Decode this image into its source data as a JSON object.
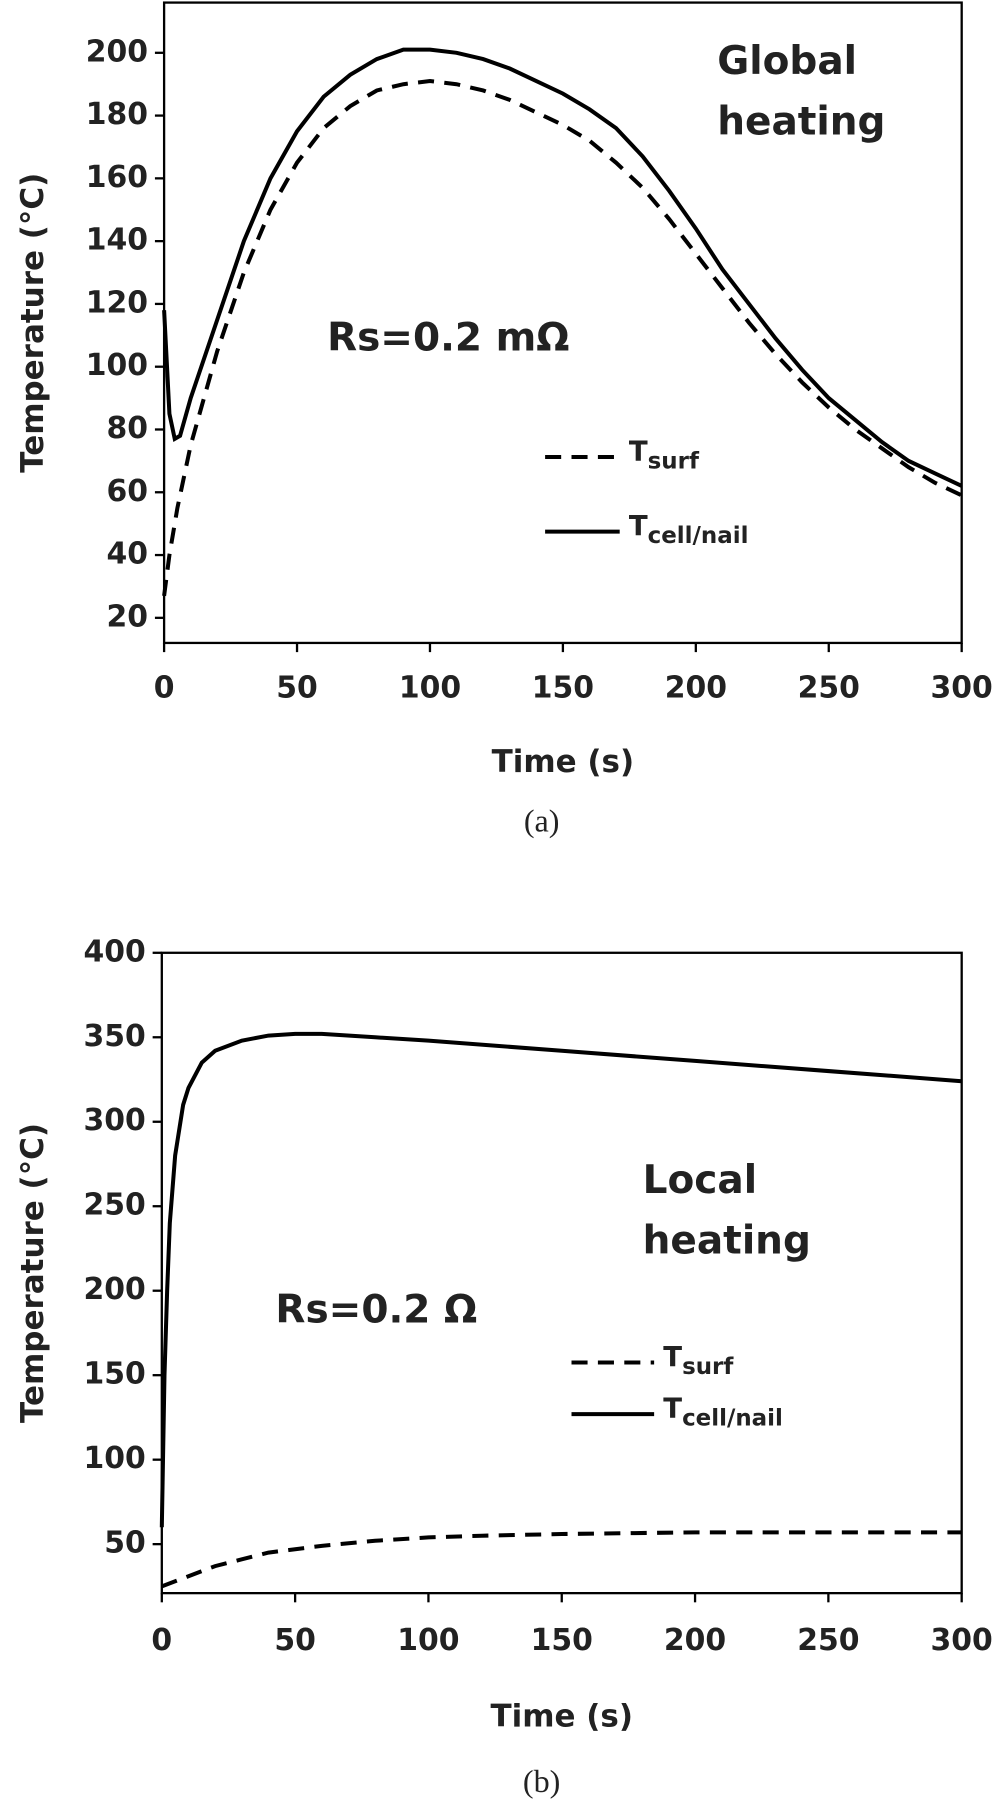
{
  "chart_data": [
    {
      "type": "line",
      "xlabel": "Time (s)",
      "ylabel": "Temperature (°C)",
      "caption": "(a)",
      "annotations": [
        [
          "Global",
          "heating"
        ],
        [
          "Rs=0.2 mΩ"
        ]
      ],
      "xlim": [
        0,
        300
      ],
      "xticks": [
        0,
        50,
        100,
        150,
        200,
        250,
        300
      ],
      "ylim": [
        12,
        216
      ],
      "yticks": [
        20,
        40,
        60,
        80,
        100,
        120,
        140,
        160,
        180,
        200
      ],
      "series": [
        {
          "name": "Tsurf",
          "color": "#000000",
          "dash": true,
          "x": [
            0,
            2,
            5,
            10,
            20,
            30,
            40,
            50,
            60,
            70,
            80,
            90,
            100,
            110,
            120,
            130,
            140,
            150,
            160,
            170,
            180,
            190,
            200,
            210,
            220,
            230,
            240,
            250,
            260,
            270,
            280,
            290,
            300
          ],
          "values": [
            27,
            40,
            55,
            75,
            105,
            130,
            150,
            165,
            176,
            183,
            188,
            190,
            191,
            190,
            188,
            185,
            181,
            177,
            172,
            165,
            157,
            147,
            136,
            125,
            114,
            104,
            95,
            87,
            80,
            74,
            68,
            63,
            59
          ]
        },
        {
          "name": "Tcell/nail",
          "color": "#000000",
          "dash": false,
          "x": [
            0,
            2,
            4,
            6,
            10,
            20,
            30,
            40,
            50,
            60,
            70,
            80,
            90,
            100,
            110,
            120,
            130,
            140,
            150,
            160,
            170,
            180,
            190,
            200,
            210,
            220,
            230,
            240,
            250,
            260,
            270,
            280,
            290,
            300
          ],
          "values": [
            118,
            85,
            77,
            78,
            90,
            115,
            140,
            160,
            175,
            186,
            193,
            198,
            201,
            201,
            200,
            198,
            195,
            191,
            187,
            182,
            176,
            167,
            156,
            144,
            131,
            120,
            109,
            99,
            90,
            83,
            76,
            70,
            66,
            62
          ]
        }
      ]
    },
    {
      "type": "line",
      "xlabel": "Time (s)",
      "ylabel": "Temperature (°C)",
      "caption": "(b)",
      "annotations": [
        [
          "Local",
          "heating"
        ],
        [
          "Rs=0.2 Ω"
        ]
      ],
      "xlim": [
        0,
        300
      ],
      "xticks": [
        0,
        50,
        100,
        150,
        200,
        250,
        300
      ],
      "ylim": [
        21,
        400
      ],
      "yticks": [
        50,
        100,
        150,
        200,
        250,
        300,
        350,
        400
      ],
      "series": [
        {
          "name": "Tsurf",
          "color": "#000000",
          "dash": true,
          "x": [
            0,
            10,
            20,
            30,
            40,
            50,
            60,
            80,
            100,
            120,
            150,
            200,
            250,
            300
          ],
          "values": [
            25,
            31,
            37,
            41,
            45,
            47,
            49,
            52,
            54,
            55,
            56,
            57,
            57,
            57
          ]
        },
        {
          "name": "Tcell/nail",
          "color": "#000000",
          "dash": false,
          "x": [
            0,
            1,
            2,
            3,
            5,
            8,
            10,
            15,
            20,
            30,
            40,
            50,
            60,
            80,
            100,
            150,
            200,
            250,
            300
          ],
          "values": [
            60,
            150,
            200,
            240,
            280,
            310,
            320,
            335,
            342,
            348,
            351,
            352,
            352,
            350,
            348,
            342,
            336,
            330,
            324
          ]
        }
      ]
    }
  ]
}
